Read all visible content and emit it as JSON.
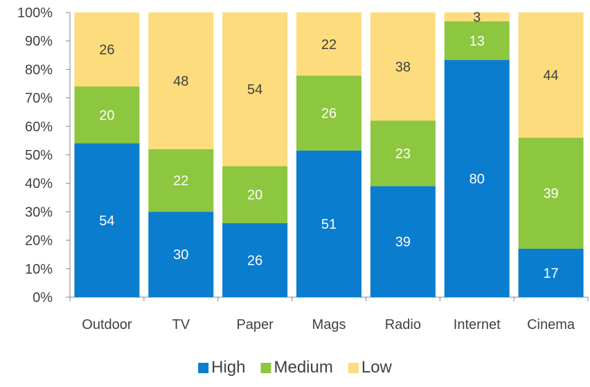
{
  "chart_data": {
    "type": "bar",
    "stacked": true,
    "normalized": true,
    "categories": [
      "Outdoor",
      "TV",
      "Paper",
      "Mags",
      "Radio",
      "Internet",
      "Cinema"
    ],
    "series": [
      {
        "name": "High",
        "color": "#0a7dcf",
        "label_color": "#ffffff",
        "values": [
          54,
          30,
          26,
          51,
          39,
          80,
          17
        ]
      },
      {
        "name": "Medium",
        "color": "#8dc63f",
        "label_color": "#ffffff",
        "values": [
          20,
          22,
          20,
          26,
          23,
          13,
          39
        ]
      },
      {
        "name": "Low",
        "color": "#fcdc7c",
        "label_color": "#404040",
        "values": [
          26,
          48,
          54,
          22,
          38,
          3,
          44
        ]
      }
    ],
    "ylim": [
      0,
      100
    ],
    "y_ticks": [
      "0%",
      "10%",
      "20%",
      "30%",
      "40%",
      "50%",
      "60%",
      "70%",
      "80%",
      "90%",
      "100%"
    ],
    "legend": "bottom",
    "grid": false
  }
}
